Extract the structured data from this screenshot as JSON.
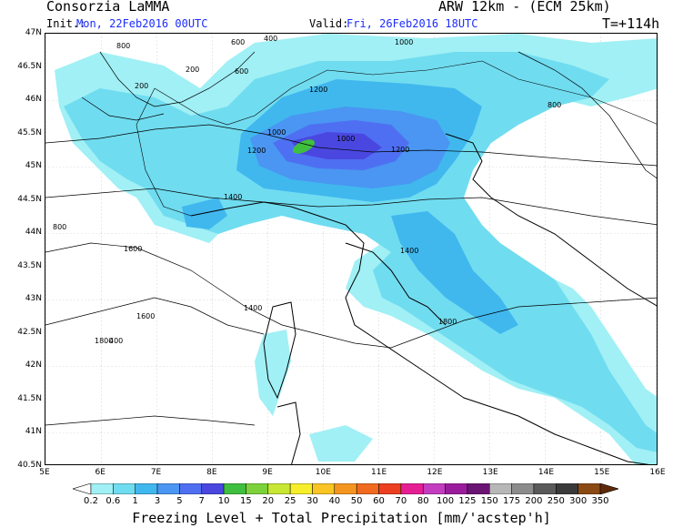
{
  "header": {
    "org": "Consorzia LaMMA",
    "model": "ARW 12km - (ECM 25km)",
    "init_label": "Init.:",
    "init_value": "Mon, 22Feb2016 00UTC",
    "valid_label": "Valid:",
    "valid_value": "Fri, 26Feb2016 18UTC",
    "lead": "T=+114h"
  },
  "axes": {
    "lat_labels": [
      "47N",
      "46.5N",
      "46N",
      "45.5N",
      "45N",
      "44.5N",
      "44N",
      "43.5N",
      "43N",
      "42.5N",
      "42N",
      "41.5N",
      "41N",
      "40.5N"
    ],
    "lon_labels": [
      "5E",
      "6E",
      "7E",
      "8E",
      "9E",
      "10E",
      "11E",
      "12E",
      "13E",
      "14E",
      "15E",
      "16E"
    ]
  },
  "legend": {
    "labels": [
      "0.2",
      "0.6",
      "1",
      "3",
      "5",
      "7",
      "10",
      "15",
      "20",
      "25",
      "30",
      "40",
      "50",
      "60",
      "70",
      "80",
      "100",
      "125",
      "150",
      "175",
      "200",
      "250",
      "300",
      "350"
    ],
    "colors": [
      "#ffffff",
      "#a0f0f5",
      "#70dcf0",
      "#40b8ee",
      "#4a96f2",
      "#4f6ff2",
      "#4a47e0",
      "#3fbf3f",
      "#7cd23a",
      "#c8e634",
      "#f6ee2a",
      "#f9c424",
      "#f59521",
      "#f06a1f",
      "#ec3f20",
      "#e61e94",
      "#c43cc0",
      "#9a1c9c",
      "#6a1474",
      "#b7b7b7",
      "#8c8c8c",
      "#5a5a5a",
      "#3a3a3a",
      "#8b4a14",
      "#5e2a0a"
    ],
    "title": "Freezing Level + Total Precipitation [mm/'acstep'h]"
  },
  "contour_labels": [
    "800",
    "600",
    "400",
    "200",
    "1000",
    "1200",
    "1400",
    "1600",
    "1800",
    "800",
    "400",
    "200",
    "600",
    "1000",
    "1200",
    "1400",
    "1600",
    "1800",
    "1000",
    "800",
    "1200",
    "1400"
  ]
}
